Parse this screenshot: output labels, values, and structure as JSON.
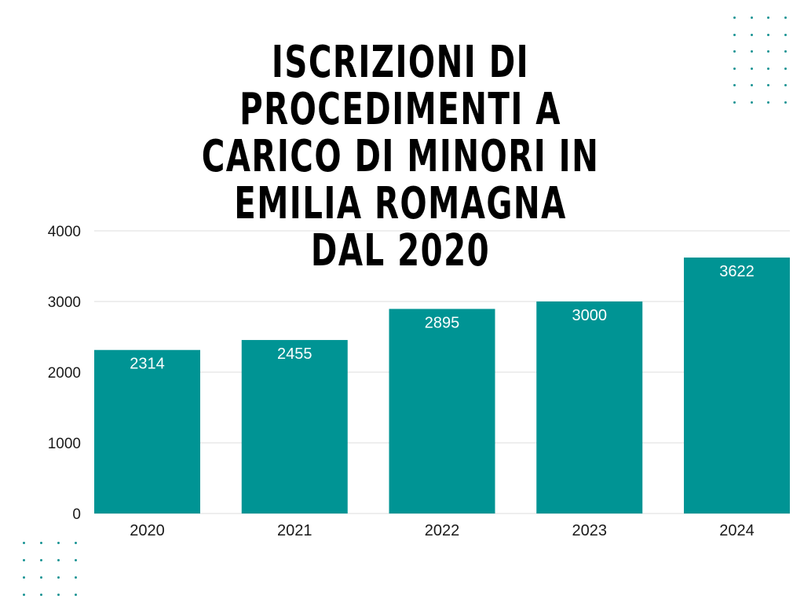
{
  "title": "ISCRIZIONI DI PROCEDIMENTI A CARICO DI MINORI IN EMILIA ROMAGNA DAL 2020",
  "colors": {
    "bar": "#009494",
    "grid": "#dddddd",
    "text": "#1a1a1a",
    "bar_label": "#ffffff",
    "dots": "#1a9494"
  },
  "chart_data": {
    "type": "bar",
    "title": "ISCRIZIONI DI PROCEDIMENTI A CARICO DI MINORI IN EMILIA ROMAGNA DAL 2020",
    "xlabel": "",
    "ylabel": "",
    "categories": [
      "2020",
      "2021",
      "2022",
      "2023",
      "2024"
    ],
    "values": [
      2314,
      2455,
      2895,
      3000,
      3622
    ],
    "ylim": [
      0,
      4000
    ],
    "yticks": [
      0,
      1000,
      2000,
      3000,
      4000
    ],
    "grid": true,
    "legend": "none",
    "data_labels": "inside-top"
  }
}
